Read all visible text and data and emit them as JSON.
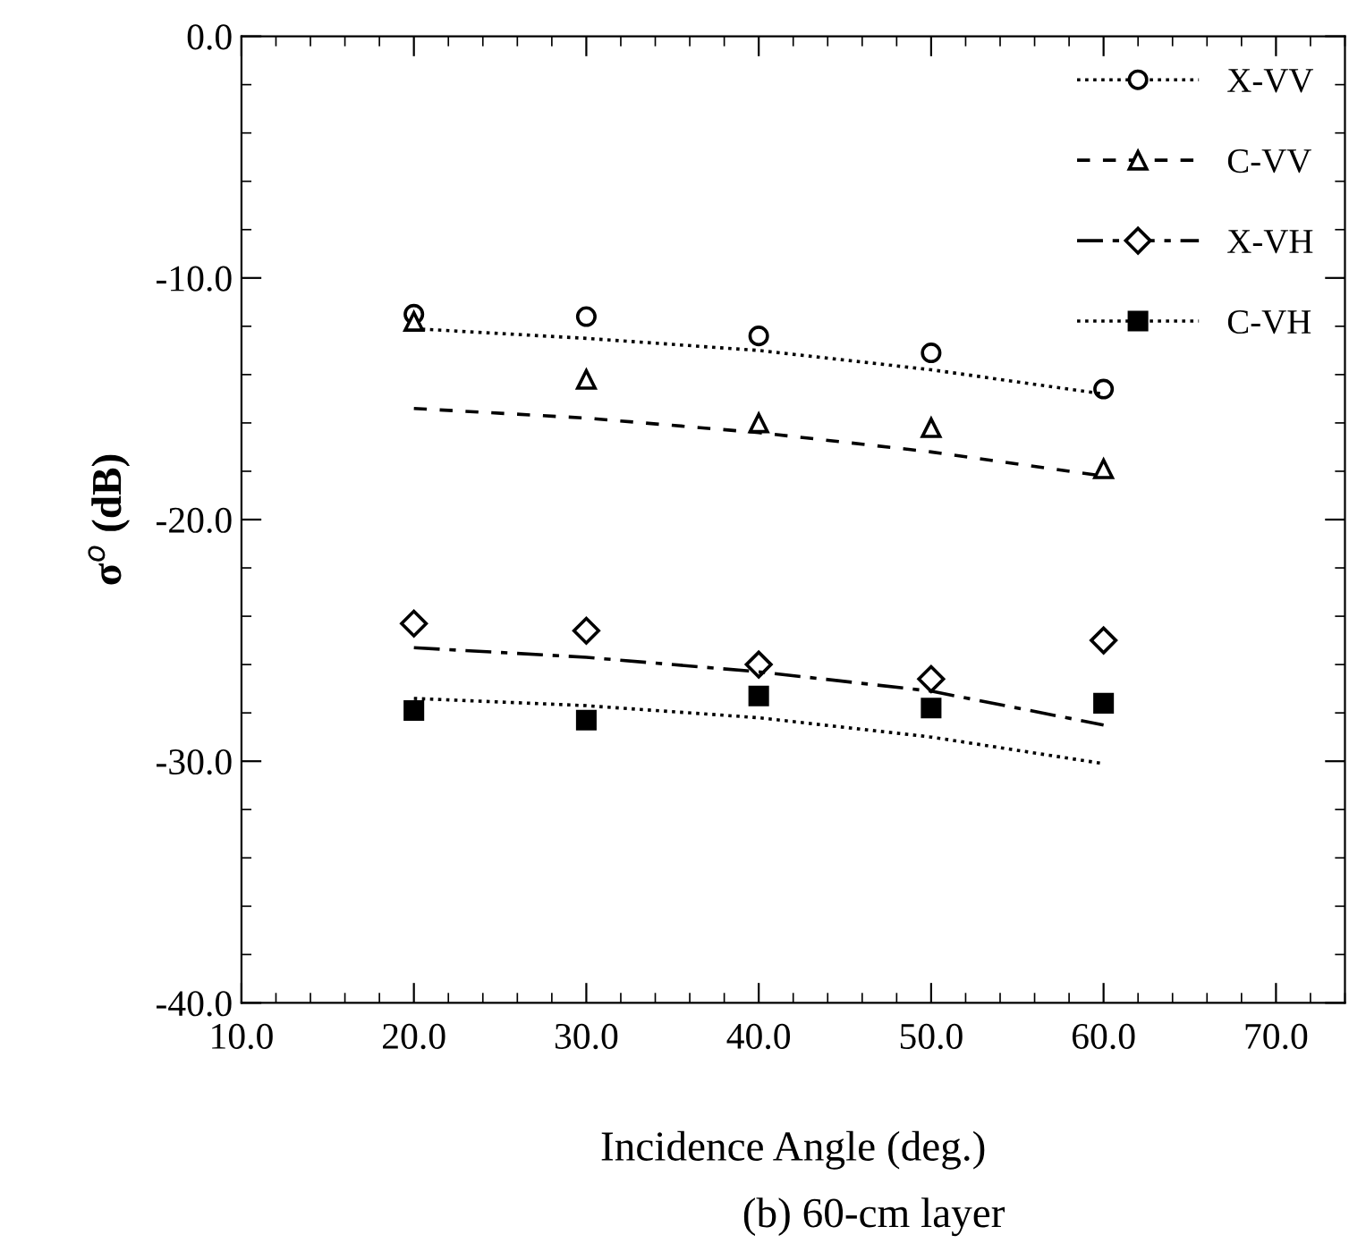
{
  "chart_data": {
    "type": "scatter",
    "xlabel": "Incidence Angle (deg.)",
    "ylabel": "σ$^{o}$ (dB)",
    "annotations": [
      "(b) 60-cm layer"
    ],
    "xlim": [
      10,
      74
    ],
    "xticks": [
      {
        "value": 10,
        "label": "10.0"
      },
      {
        "value": 20,
        "label": "20.0"
      },
      {
        "value": 30,
        "label": "30.0"
      },
      {
        "value": 40,
        "label": "40.0"
      },
      {
        "value": 50,
        "label": "50.0"
      },
      {
        "value": 60,
        "label": "60.0"
      },
      {
        "value": 70,
        "label": "70.0"
      }
    ],
    "ylim": [
      -40,
      0
    ],
    "yticks": [
      {
        "value": -40,
        "label": "-40.0"
      },
      {
        "value": -30,
        "label": "-30.0"
      },
      {
        "value": -20,
        "label": "-20.0"
      },
      {
        "value": -10,
        "label": "-10.0"
      },
      {
        "value": 0,
        "label": "0.0"
      }
    ],
    "grid": false,
    "legend": "top right",
    "series": [
      {
        "name": "X-VV",
        "color": "#000000",
        "marker": "circle",
        "line_style": "dotted",
        "x": [
          20,
          30,
          40,
          50,
          60
        ],
        "values": [
          -11.5,
          -11.6,
          -12.4,
          -13.1,
          -14.6
        ]
      },
      {
        "type": "line",
        "color": "#000000",
        "line_style": "dotted",
        "x": [
          20,
          30,
          40,
          50,
          60
        ],
        "values": [
          -12.1,
          -12.5,
          -13.0,
          -13.8,
          -14.8
        ]
      },
      {
        "name": "C-VV",
        "color": "#000000",
        "marker": "triangle",
        "line_style": "dashed",
        "x": [
          20,
          30,
          40,
          50,
          60
        ],
        "values": [
          -11.8,
          -14.2,
          -16.0,
          -16.2,
          -17.9
        ]
      },
      {
        "type": "line",
        "color": "#000000",
        "line_style": "dashed",
        "x": [
          20,
          30,
          40,
          50,
          60
        ],
        "values": [
          -15.4,
          -15.8,
          -16.4,
          -17.2,
          -18.2
        ]
      },
      {
        "name": "X-VH",
        "color": "#000000",
        "marker": "diamond",
        "line_style": "dashdot",
        "x": [
          20,
          30,
          40,
          50,
          60
        ],
        "values": [
          -24.3,
          -24.6,
          -26.0,
          -26.6,
          -25.0
        ]
      },
      {
        "type": "line",
        "color": "#000000",
        "line_style": "dashdot",
        "x": [
          20,
          30,
          40,
          50,
          60
        ],
        "values": [
          -25.3,
          -25.7,
          -26.3,
          -27.1,
          -28.5
        ]
      },
      {
        "name": "C-VH",
        "color": "#000000",
        "marker": "square",
        "line_style": "dotted",
        "x": [
          20,
          30,
          40,
          50,
          60
        ],
        "values": [
          -27.9,
          -28.3,
          -27.3,
          -27.8,
          -27.6
        ]
      },
      {
        "type": "line",
        "color": "#000000",
        "line_style": "dotted",
        "x": [
          20,
          30,
          40,
          50,
          60
        ],
        "values": [
          -27.4,
          -27.7,
          -28.2,
          -29.0,
          -30.1
        ]
      }
    ]
  }
}
